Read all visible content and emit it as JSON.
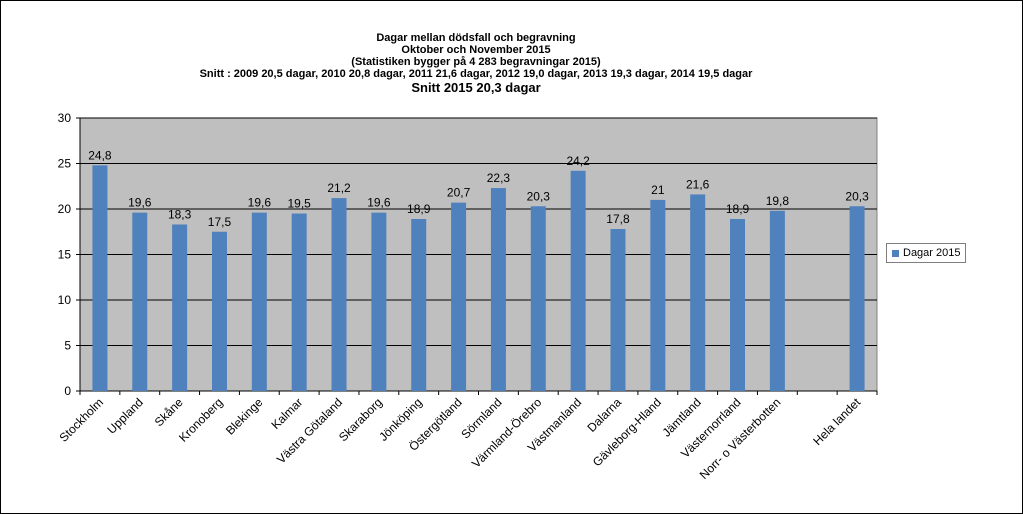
{
  "titles": {
    "main": "Dagar mellan dödsfall och begravning",
    "sub1": "Oktober och November 2015",
    "sub2": "(Statistiken bygger på 4 283 begravningar 2015)",
    "sub3": "Snitt : 2009 20,5 dagar,  2010 20,8 dagar,  2011 21,6 dagar, 2012 19,0 dagar, 2013 19,3 dagar, 2014 19,5 dagar",
    "sub4": "Snitt 2015 20,3 dagar"
  },
  "colors": {
    "bar": "#4f81bd",
    "plot_bg": "#bfbfbf",
    "grid": "#000000"
  },
  "chart_data": {
    "type": "bar",
    "categories": [
      "Stockholm",
      "Uppland",
      "Skåne",
      "Kronoberg",
      "Blekinge",
      "Kalmar",
      "Västra Götaland",
      "Skaraborg",
      "Jönköping",
      "Östergötland",
      "Sörmland",
      "Värmland-Örebro",
      "Västmanland",
      "Dalarna",
      "Gävleborg-Hland",
      "Jämtland",
      "Västernorrland",
      "Norr- o Västerbotten",
      "",
      "Hela landet"
    ],
    "series": [
      {
        "name": "Dagar 2015",
        "values": [
          24.8,
          19.6,
          18.3,
          17.5,
          19.6,
          19.5,
          21.2,
          19.6,
          18.9,
          20.7,
          22.3,
          20.3,
          24.2,
          17.8,
          21,
          21.6,
          18.9,
          19.8,
          null,
          20.3
        ],
        "data_labels": [
          "24,8",
          "19,6",
          "18,3",
          "17,5",
          "19,6",
          "19,5",
          "21,2",
          "19,6",
          "18,9",
          "20,7",
          "22,3",
          "20,3",
          "24,2",
          "17,8",
          "21",
          "21,6",
          "18,9",
          "19,8",
          "",
          "20,3"
        ]
      }
    ],
    "ylim": [
      0,
      30
    ],
    "yticks": [
      0,
      5,
      10,
      15,
      20,
      25,
      30
    ],
    "grid": true,
    "legend_position": "right"
  }
}
